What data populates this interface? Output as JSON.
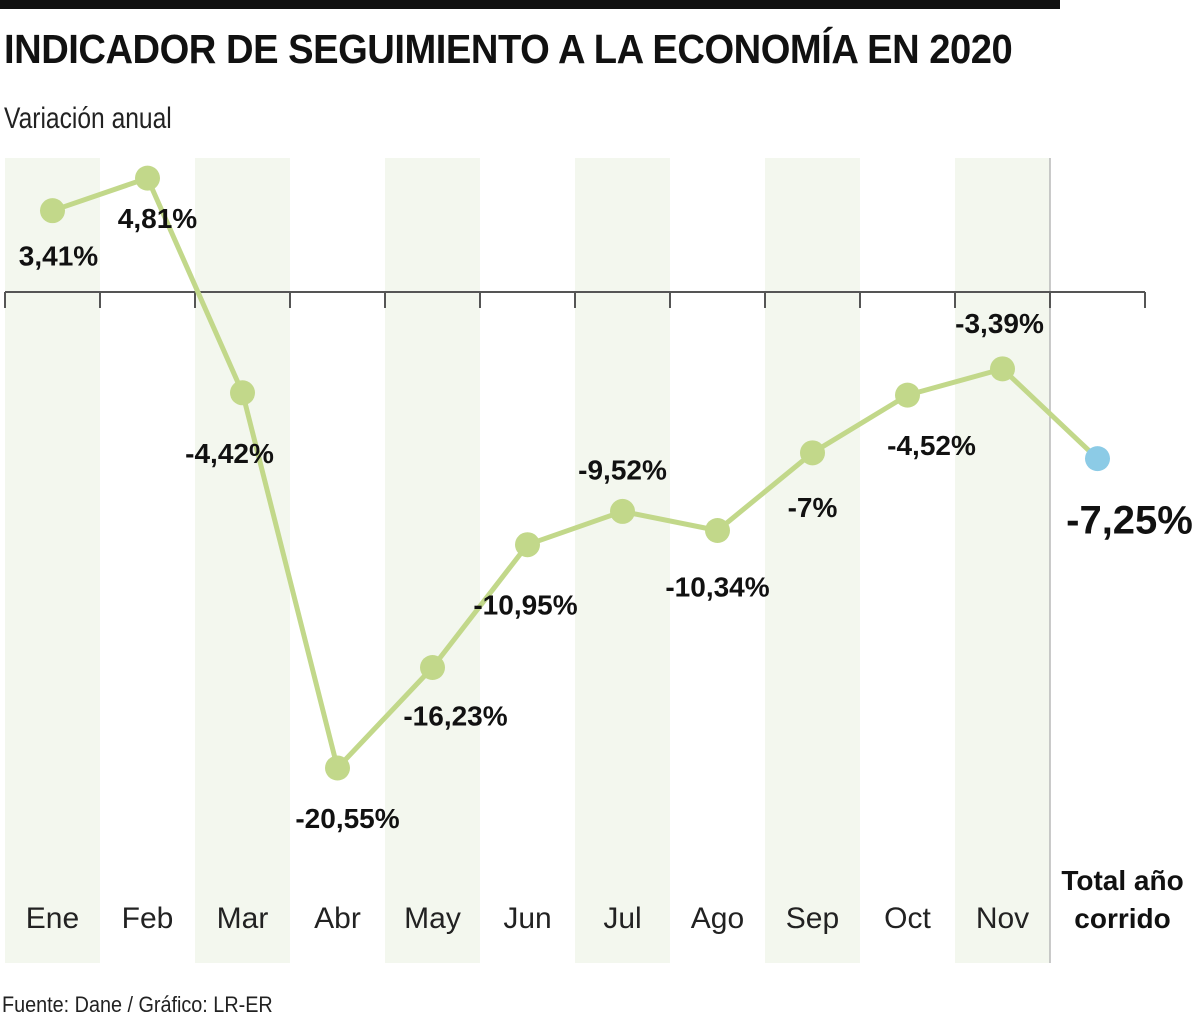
{
  "header": {
    "title": "INDICADOR DE SEGUIMIENTO A LA ECONOMÍA EN 2020",
    "subtitle": "Variación anual"
  },
  "footer": {
    "source": "Fuente: Dane / Gráfico: LR-ER"
  },
  "colors": {
    "line": "#c2d88a",
    "marker": "#c2d88a",
    "total_marker": "#8ccbe6",
    "band": "#f3f7ee",
    "axis": "#555555",
    "topbar": "#111111"
  },
  "chart_data": {
    "type": "line",
    "title": "INDICADOR DE SEGUIMIENTO A LA ECONOMÍA EN 2020",
    "subtitle": "Variación anual",
    "xlabel": "",
    "ylabel": "Variación anual (%)",
    "categories": [
      "Ene",
      "Feb",
      "Mar",
      "Abr",
      "May",
      "Jun",
      "Jul",
      "Ago",
      "Sep",
      "Oct",
      "Nov"
    ],
    "series": [
      {
        "name": "Variación anual",
        "values": [
          3.41,
          4.81,
          -4.42,
          -20.55,
          -16.23,
          -10.95,
          -9.52,
          -10.34,
          -7,
          -4.52,
          -3.39
        ],
        "labels": [
          "3,41%",
          "4,81%",
          "-4,42%",
          "-20,55%",
          "-16,23%",
          "-10,95%",
          "-9,52%",
          "-10,34%",
          "-7%",
          "-4,52%",
          "-3,39%"
        ]
      }
    ],
    "total": {
      "category_lines": [
        "Total año",
        "corrido"
      ],
      "value": -7.25,
      "label": "-7,25%"
    },
    "ylim": [
      -25,
      6
    ],
    "zero_line": true,
    "grid": false,
    "legend": "none",
    "source": "Fuente: Dane / Gráfico: LR-ER"
  }
}
